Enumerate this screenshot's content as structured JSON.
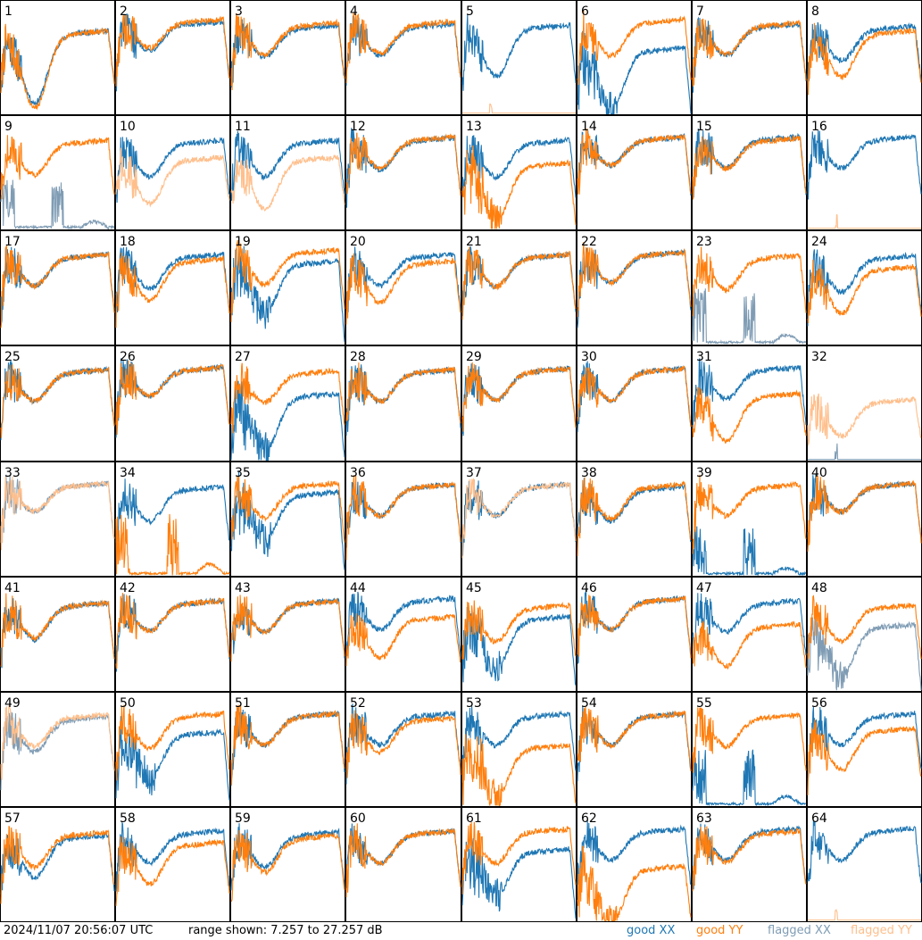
{
  "footer": {
    "timestamp": "2024/11/07 20:56:07 UTC",
    "range_text": "range shown: 7.257 to 27.257 dB",
    "legend": [
      {
        "label": "good XX",
        "color": "#1f77b4"
      },
      {
        "label": "good YY",
        "color": "#ff7f0e"
      },
      {
        "label": "flagged XX",
        "color": "#7f9cb4"
      },
      {
        "label": "flagged YY",
        "color": "#ffbf8c"
      }
    ]
  },
  "chart_data": {
    "type": "line",
    "layout": "small-multiples 8x8",
    "y_range_db": [
      7.257,
      27.257
    ],
    "series_names": [
      "good XX",
      "good YY",
      "flagged XX",
      "flagged YY"
    ],
    "panels": [
      {
        "id": "1",
        "xx": "good",
        "yy": "good",
        "xx_shape": "normal",
        "yy_shape": "normal",
        "xx_level": 0.7,
        "yy_level": 0.7,
        "xx_dip": 0.65,
        "yy_dip": 0.7
      },
      {
        "id": "2",
        "xx": "good",
        "yy": "good",
        "xx_shape": "normal",
        "yy_shape": "normal",
        "xx_level": 0.78,
        "yy_level": 0.8,
        "xx_dip": 0.22,
        "yy_dip": 0.22
      },
      {
        "id": "3",
        "xx": "good",
        "yy": "good",
        "xx_shape": "normal",
        "yy_shape": "normal",
        "xx_level": 0.75,
        "yy_level": 0.77,
        "xx_dip": 0.25,
        "yy_dip": 0.25
      },
      {
        "id": "4",
        "xx": "good",
        "yy": "good",
        "xx_shape": "normal",
        "yy_shape": "normal",
        "xx_level": 0.76,
        "yy_level": 0.78,
        "xx_dip": 0.25,
        "yy_dip": 0.25
      },
      {
        "id": "5",
        "xx": "good",
        "yy": "flagged",
        "xx_shape": "normal",
        "yy_shape": "flat",
        "xx_level": 0.75,
        "yy_level": 0.02,
        "xx_dip": 0.45,
        "yy_dip": 0.0
      },
      {
        "id": "6",
        "xx": "good",
        "yy": "good",
        "xx_shape": "deep",
        "yy_shape": "normal",
        "xx_level": 0.55,
        "yy_level": 0.8,
        "xx_dip": 0.55,
        "yy_dip": 0.3
      },
      {
        "id": "7",
        "xx": "good",
        "yy": "good",
        "xx_shape": "normal",
        "yy_shape": "normal",
        "xx_level": 0.76,
        "yy_level": 0.77,
        "xx_dip": 0.25,
        "yy_dip": 0.25
      },
      {
        "id": "8",
        "xx": "good",
        "yy": "good",
        "xx_shape": "normal",
        "yy_shape": "normal",
        "xx_level": 0.74,
        "yy_level": 0.7,
        "xx_dip": 0.28,
        "yy_dip": 0.4
      },
      {
        "id": "9",
        "xx": "flagged",
        "yy": "good",
        "xx_shape": "spiky",
        "yy_shape": "normal",
        "xx_level": 0.15,
        "yy_level": 0.75,
        "xx_dip": 0.0,
        "yy_dip": 0.28
      },
      {
        "id": "10",
        "xx": "good",
        "yy": "flagged",
        "xx_shape": "normal",
        "yy_shape": "normal",
        "xx_level": 0.75,
        "yy_level": 0.6,
        "xx_dip": 0.3,
        "yy_dip": 0.4
      },
      {
        "id": "11",
        "xx": "good",
        "yy": "flagged",
        "xx_shape": "normal",
        "yy_shape": "normal",
        "xx_level": 0.75,
        "yy_level": 0.6,
        "xx_dip": 0.3,
        "yy_dip": 0.45
      },
      {
        "id": "12",
        "xx": "good",
        "yy": "good",
        "xx_shape": "normal",
        "yy_shape": "normal",
        "xx_level": 0.77,
        "yy_level": 0.78,
        "xx_dip": 0.25,
        "yy_dip": 0.25
      },
      {
        "id": "13",
        "xx": "good",
        "yy": "good",
        "xx_shape": "normal",
        "yy_shape": "deep",
        "xx_level": 0.75,
        "yy_level": 0.55,
        "xx_dip": 0.3,
        "yy_dip": 0.5
      },
      {
        "id": "14",
        "xx": "good",
        "yy": "good",
        "xx_shape": "normal",
        "yy_shape": "normal",
        "xx_level": 0.78,
        "yy_level": 0.78,
        "xx_dip": 0.22,
        "yy_dip": 0.22
      },
      {
        "id": "15",
        "xx": "good",
        "yy": "good",
        "xx_shape": "normal",
        "yy_shape": "normal",
        "xx_level": 0.78,
        "yy_level": 0.77,
        "xx_dip": 0.24,
        "yy_dip": 0.24
      },
      {
        "id": "16",
        "xx": "good",
        "yy": "flagged",
        "xx_shape": "normal",
        "yy_shape": "flat",
        "xx_level": 0.78,
        "yy_level": 0.02,
        "xx_dip": 0.25,
        "yy_dip": 0.0
      },
      {
        "id": "17",
        "xx": "good",
        "yy": "good",
        "xx_shape": "normal",
        "yy_shape": "normal",
        "xx_level": 0.76,
        "yy_level": 0.76,
        "xx_dip": 0.25,
        "yy_dip": 0.25
      },
      {
        "id": "18",
        "xx": "good",
        "yy": "good",
        "xx_shape": "normal",
        "yy_shape": "normal",
        "xx_level": 0.76,
        "yy_level": 0.72,
        "xx_dip": 0.28,
        "yy_dip": 0.35
      },
      {
        "id": "19",
        "xx": "good",
        "yy": "good",
        "xx_shape": "deep",
        "yy_shape": "normal",
        "xx_level": 0.7,
        "yy_level": 0.8,
        "xx_dip": 0.45,
        "yy_dip": 0.28
      },
      {
        "id": "20",
        "xx": "good",
        "yy": "good",
        "xx_shape": "normal",
        "yy_shape": "normal",
        "xx_level": 0.76,
        "yy_level": 0.7,
        "xx_dip": 0.25,
        "yy_dip": 0.35
      },
      {
        "id": "21",
        "xx": "good",
        "yy": "good",
        "xx_shape": "normal",
        "yy_shape": "normal",
        "xx_level": 0.76,
        "yy_level": 0.76,
        "xx_dip": 0.26,
        "yy_dip": 0.26
      },
      {
        "id": "22",
        "xx": "good",
        "yy": "good",
        "xx_shape": "normal",
        "yy_shape": "normal",
        "xx_level": 0.78,
        "yy_level": 0.78,
        "xx_dip": 0.24,
        "yy_dip": 0.24
      },
      {
        "id": "23",
        "xx": "flagged",
        "yy": "good",
        "xx_shape": "spiky",
        "yy_shape": "normal",
        "xx_level": 0.2,
        "yy_level": 0.75,
        "xx_dip": 0.0,
        "yy_dip": 0.28
      },
      {
        "id": "24",
        "xx": "good",
        "yy": "good",
        "xx_shape": "normal",
        "yy_shape": "normal",
        "xx_level": 0.75,
        "yy_level": 0.65,
        "xx_dip": 0.3,
        "yy_dip": 0.4
      },
      {
        "id": "25",
        "xx": "good",
        "yy": "good",
        "xx_shape": "normal",
        "yy_shape": "normal",
        "xx_level": 0.76,
        "yy_level": 0.76,
        "xx_dip": 0.25,
        "yy_dip": 0.25
      },
      {
        "id": "26",
        "xx": "good",
        "yy": "good",
        "xx_shape": "normal",
        "yy_shape": "normal",
        "xx_level": 0.78,
        "yy_level": 0.78,
        "xx_dip": 0.22,
        "yy_dip": 0.22
      },
      {
        "id": "27",
        "xx": "good",
        "yy": "good",
        "xx_shape": "deep",
        "yy_shape": "normal",
        "xx_level": 0.55,
        "yy_level": 0.75,
        "xx_dip": 0.5,
        "yy_dip": 0.25
      },
      {
        "id": "28",
        "xx": "good",
        "yy": "good",
        "xx_shape": "normal",
        "yy_shape": "normal",
        "xx_level": 0.76,
        "yy_level": 0.76,
        "xx_dip": 0.25,
        "yy_dip": 0.25
      },
      {
        "id": "29",
        "xx": "good",
        "yy": "good",
        "xx_shape": "normal",
        "yy_shape": "normal",
        "xx_level": 0.77,
        "yy_level": 0.77,
        "xx_dip": 0.25,
        "yy_dip": 0.25
      },
      {
        "id": "30",
        "xx": "good",
        "yy": "good",
        "xx_shape": "normal",
        "yy_shape": "normal",
        "xx_level": 0.77,
        "yy_level": 0.77,
        "xx_dip": 0.25,
        "yy_dip": 0.25
      },
      {
        "id": "31",
        "xx": "good",
        "yy": "good",
        "xx_shape": "normal",
        "yy_shape": "normal",
        "xx_level": 0.78,
        "yy_level": 0.55,
        "xx_dip": 0.25,
        "yy_dip": 0.4
      },
      {
        "id": "32",
        "xx": "flagged",
        "yy": "flagged",
        "xx_shape": "flat",
        "yy_shape": "normal",
        "xx_level": 0.02,
        "yy_level": 0.5,
        "xx_dip": 0.0,
        "yy_dip": 0.3
      },
      {
        "id": "33",
        "xx": "flagged",
        "yy": "flagged",
        "xx_shape": "normal",
        "yy_shape": "normal",
        "xx_level": 0.78,
        "yy_level": 0.78,
        "xx_dip": 0.22,
        "yy_dip": 0.22
      },
      {
        "id": "34",
        "xx": "good",
        "yy": "good",
        "xx_shape": "normal",
        "yy_shape": "spiky",
        "xx_level": 0.75,
        "yy_level": 0.25,
        "xx_dip": 0.28,
        "yy_dip": 0.0
      },
      {
        "id": "35",
        "xx": "good",
        "yy": "good",
        "xx_shape": "deep",
        "yy_shape": "normal",
        "xx_level": 0.7,
        "yy_level": 0.78,
        "xx_dip": 0.4,
        "yy_dip": 0.28
      },
      {
        "id": "36",
        "xx": "good",
        "yy": "good",
        "xx_shape": "normal",
        "yy_shape": "normal",
        "xx_level": 0.77,
        "yy_level": 0.77,
        "xx_dip": 0.25,
        "yy_dip": 0.25
      },
      {
        "id": "37",
        "xx": "good",
        "yy": "flagged",
        "xx_shape": "normal",
        "yy_shape": "normal",
        "xx_level": 0.77,
        "yy_level": 0.77,
        "xx_dip": 0.25,
        "yy_dip": 0.25
      },
      {
        "id": "38",
        "xx": "good",
        "yy": "good",
        "xx_shape": "normal",
        "yy_shape": "normal",
        "xx_level": 0.75,
        "yy_level": 0.77,
        "xx_dip": 0.28,
        "yy_dip": 0.28
      },
      {
        "id": "39",
        "xx": "good",
        "yy": "good",
        "xx_shape": "spiky",
        "yy_shape": "normal",
        "xx_level": 0.15,
        "yy_level": 0.77,
        "xx_dip": 0.0,
        "yy_dip": 0.25
      },
      {
        "id": "40",
        "xx": "good",
        "yy": "good",
        "xx_shape": "normal",
        "yy_shape": "normal",
        "xx_level": 0.78,
        "yy_level": 0.78,
        "xx_dip": 0.22,
        "yy_dip": 0.22
      },
      {
        "id": "41",
        "xx": "good",
        "yy": "good",
        "xx_shape": "normal",
        "yy_shape": "normal",
        "xx_level": 0.74,
        "yy_level": 0.74,
        "xx_dip": 0.3,
        "yy_dip": 0.28
      },
      {
        "id": "42",
        "xx": "good",
        "yy": "good",
        "xx_shape": "normal",
        "yy_shape": "normal",
        "xx_level": 0.76,
        "yy_level": 0.76,
        "xx_dip": 0.24,
        "yy_dip": 0.24
      },
      {
        "id": "43",
        "xx": "good",
        "yy": "good",
        "xx_shape": "normal",
        "yy_shape": "normal",
        "xx_level": 0.76,
        "yy_level": 0.76,
        "xx_dip": 0.25,
        "yy_dip": 0.25
      },
      {
        "id": "44",
        "xx": "good",
        "yy": "good",
        "xx_shape": "normal",
        "yy_shape": "normal",
        "xx_level": 0.78,
        "yy_level": 0.62,
        "xx_dip": 0.25,
        "yy_dip": 0.35
      },
      {
        "id": "45",
        "xx": "good",
        "yy": "good",
        "xx_shape": "deep",
        "yy_shape": "normal",
        "xx_level": 0.62,
        "yy_level": 0.72,
        "xx_dip": 0.45,
        "yy_dip": 0.3
      },
      {
        "id": "46",
        "xx": "good",
        "yy": "good",
        "xx_shape": "normal",
        "yy_shape": "normal",
        "xx_level": 0.78,
        "yy_level": 0.78,
        "xx_dip": 0.25,
        "yy_dip": 0.25
      },
      {
        "id": "47",
        "xx": "good",
        "yy": "good",
        "xx_shape": "normal",
        "yy_shape": "normal",
        "xx_level": 0.76,
        "yy_level": 0.55,
        "xx_dip": 0.25,
        "yy_dip": 0.35
      },
      {
        "id": "48",
        "xx": "flagged",
        "yy": "good",
        "xx_shape": "deep",
        "yy_shape": "normal",
        "xx_level": 0.55,
        "yy_level": 0.72,
        "xx_dip": 0.45,
        "yy_dip": 0.3
      },
      {
        "id": "49",
        "xx": "flagged",
        "yy": "flagged",
        "xx_shape": "normal",
        "yy_shape": "normal",
        "xx_level": 0.75,
        "yy_level": 0.77,
        "xx_dip": 0.28,
        "yy_dip": 0.25
      },
      {
        "id": "50",
        "xx": "good",
        "yy": "good",
        "xx_shape": "deep",
        "yy_shape": "normal",
        "xx_level": 0.62,
        "yy_level": 0.78,
        "xx_dip": 0.4,
        "yy_dip": 0.28
      },
      {
        "id": "51",
        "xx": "good",
        "yy": "good",
        "xx_shape": "normal",
        "yy_shape": "normal",
        "xx_level": 0.78,
        "yy_level": 0.78,
        "xx_dip": 0.25,
        "yy_dip": 0.25
      },
      {
        "id": "52",
        "xx": "good",
        "yy": "good",
        "xx_shape": "normal",
        "yy_shape": "normal",
        "xx_level": 0.78,
        "yy_level": 0.74,
        "xx_dip": 0.25,
        "yy_dip": 0.28
      },
      {
        "id": "53",
        "xx": "good",
        "yy": "good",
        "xx_shape": "normal",
        "yy_shape": "deep",
        "xx_level": 0.78,
        "yy_level": 0.5,
        "xx_dip": 0.25,
        "yy_dip": 0.45
      },
      {
        "id": "54",
        "xx": "good",
        "yy": "good",
        "xx_shape": "normal",
        "yy_shape": "normal",
        "xx_level": 0.78,
        "yy_level": 0.78,
        "xx_dip": 0.25,
        "yy_dip": 0.25
      },
      {
        "id": "55",
        "xx": "good",
        "yy": "good",
        "xx_shape": "spiky",
        "yy_shape": "normal",
        "xx_level": 0.2,
        "yy_level": 0.77,
        "xx_dip": 0.0,
        "yy_dip": 0.25
      },
      {
        "id": "56",
        "xx": "good",
        "yy": "good",
        "xx_shape": "normal",
        "yy_shape": "normal",
        "xx_level": 0.78,
        "yy_level": 0.65,
        "xx_dip": 0.25,
        "yy_dip": 0.35
      },
      {
        "id": "57",
        "xx": "good",
        "yy": "good",
        "xx_shape": "normal",
        "yy_shape": "normal",
        "xx_level": 0.72,
        "yy_level": 0.75,
        "xx_dip": 0.35,
        "yy_dip": 0.28
      },
      {
        "id": "58",
        "xx": "good",
        "yy": "good",
        "xx_shape": "normal",
        "yy_shape": "normal",
        "xx_level": 0.76,
        "yy_level": 0.66,
        "xx_dip": 0.25,
        "yy_dip": 0.35
      },
      {
        "id": "59",
        "xx": "good",
        "yy": "good",
        "xx_shape": "normal",
        "yy_shape": "normal",
        "xx_level": 0.75,
        "yy_level": 0.72,
        "xx_dip": 0.28,
        "yy_dip": 0.3
      },
      {
        "id": "60",
        "xx": "good",
        "yy": "good",
        "xx_shape": "normal",
        "yy_shape": "normal",
        "xx_level": 0.76,
        "yy_level": 0.76,
        "xx_dip": 0.26,
        "yy_dip": 0.26
      },
      {
        "id": "61",
        "xx": "good",
        "yy": "good",
        "xx_shape": "deep",
        "yy_shape": "normal",
        "xx_level": 0.6,
        "yy_level": 0.78,
        "xx_dip": 0.4,
        "yy_dip": 0.28
      },
      {
        "id": "62",
        "xx": "good",
        "yy": "good",
        "xx_shape": "normal",
        "yy_shape": "deep",
        "xx_level": 0.78,
        "yy_level": 0.45,
        "xx_dip": 0.25,
        "yy_dip": 0.5
      },
      {
        "id": "63",
        "xx": "good",
        "yy": "good",
        "xx_shape": "normal",
        "yy_shape": "normal",
        "xx_level": 0.78,
        "yy_level": 0.76,
        "xx_dip": 0.25,
        "yy_dip": 0.25
      },
      {
        "id": "64",
        "xx": "good",
        "yy": "flagged",
        "xx_shape": "normal",
        "yy_shape": "flat",
        "xx_level": 0.78,
        "yy_level": 0.02,
        "xx_dip": 0.25,
        "yy_dip": 0.0
      }
    ]
  }
}
